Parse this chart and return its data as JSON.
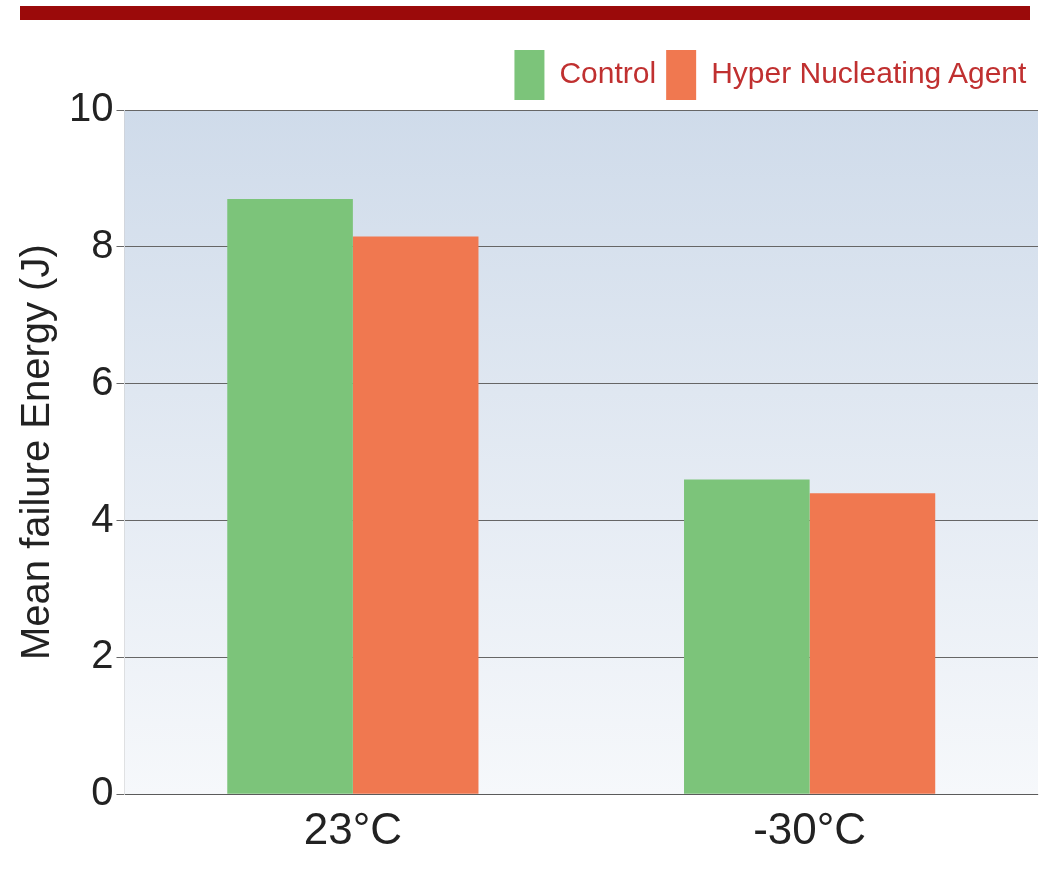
{
  "chart_data": {
    "type": "bar",
    "ylabel": "Mean failure Energy (J)",
    "categories": [
      "23°C",
      "-30°C"
    ],
    "series": [
      {
        "name": "Control",
        "color": "#7cc47a",
        "values": [
          8.7,
          4.6
        ]
      },
      {
        "name": "Hyper Nucleating Agent",
        "color": "#f07850",
        "values": [
          8.15,
          4.4
        ]
      }
    ],
    "ylim": [
      0,
      10
    ],
    "yticks": [
      0,
      2,
      4,
      6,
      8,
      10
    ],
    "grid": "y",
    "legend": "top right"
  }
}
